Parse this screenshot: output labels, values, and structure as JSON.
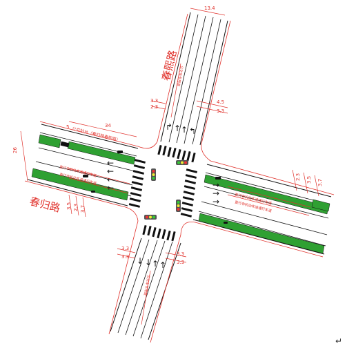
{
  "roads": {
    "chunxi": {
      "name": "春熙路"
    },
    "chungui": {
      "name": "春归路"
    }
  },
  "dimensions": {
    "north_width": "13.4",
    "west_length": "34",
    "west_total": "26",
    "bus_offset": "5",
    "north_lanes_a": "3.3",
    "north_lanes_b": "2.3",
    "north_median": "4.5",
    "north_lanes_c": "3.3",
    "west_lane_a": "3.5",
    "west_lane_b": "2.3",
    "west_lane_c": "3.7",
    "east_lane_a": "2.3",
    "east_lane_b": "3.5",
    "east_lane_c": "3.7",
    "south_a": "3.3",
    "south_b": "3.3",
    "south_c": "3.3",
    "south_d": "3.3"
  },
  "labels": {
    "bus_stop": "公交站台（春归路春熙路）",
    "west_lane_note_1": "直行非机动车道通行车道",
    "west_lane_note_2": "直行非机动车道通行车道",
    "east_lane_note_1": "直行非机动车道通行车道",
    "east_lane_note_2": "直行非机动车道通行车道",
    "north_lane_text": "公交车专用道",
    "south_lane_text": "公交车专用道",
    "cursor_mark": "↵"
  },
  "colors": {
    "median_green": "#2fa032",
    "dimension_red": "#e0302a",
    "line_black": "#111111"
  }
}
